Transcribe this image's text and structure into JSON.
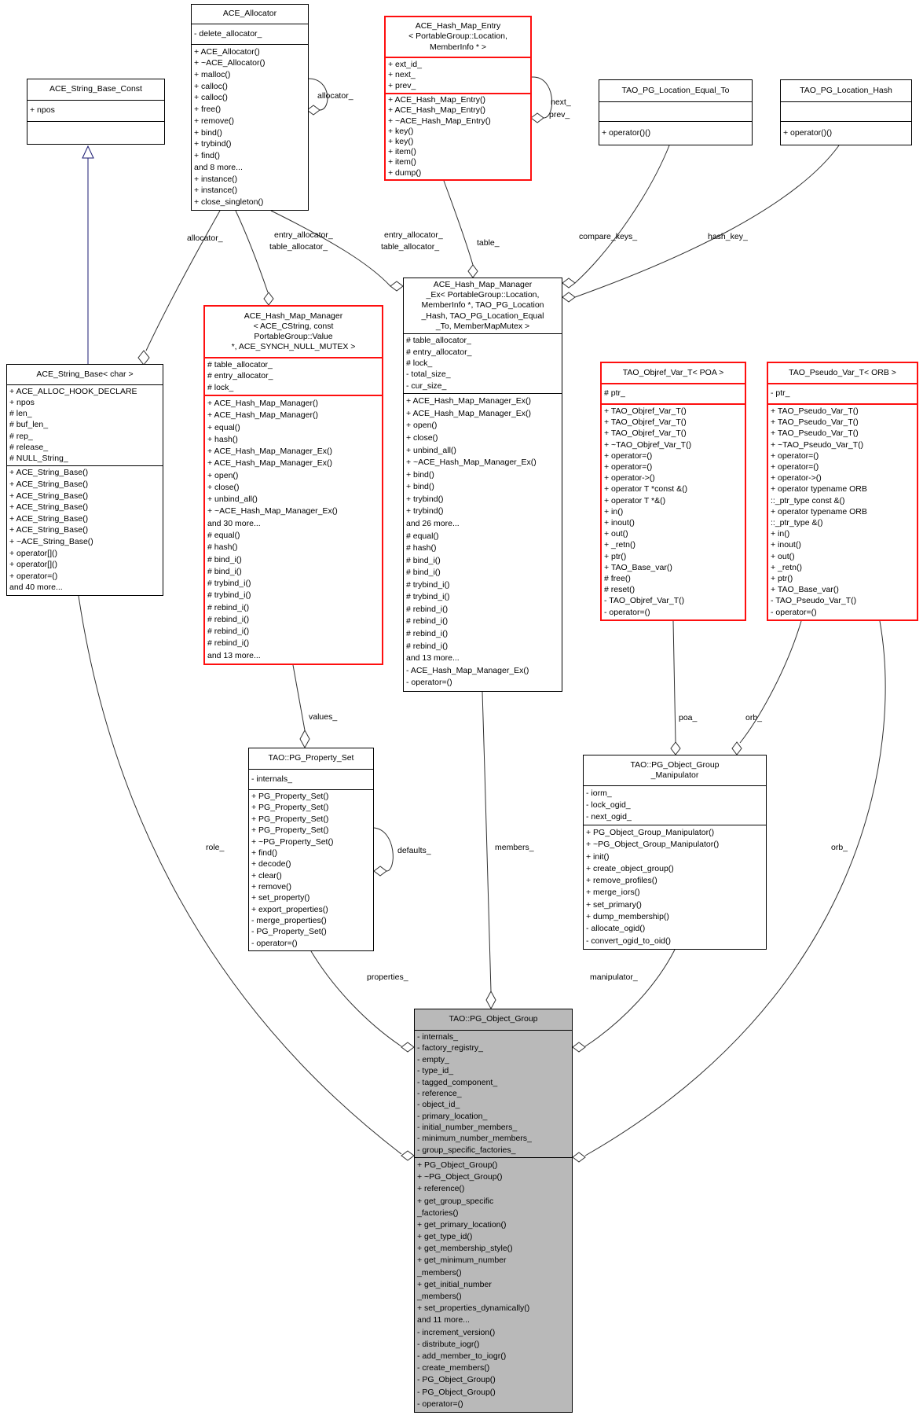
{
  "colors": {
    "plain_border": "#000000",
    "red_border": "#fe0f0f",
    "selected_fill": "#b9b9b9",
    "edge": "#303030",
    "inheritance_edge": "#191970",
    "background": "#ffffff"
  },
  "classes": [
    {
      "id": "ace_string_base_const",
      "style": "plain",
      "title_lines": [
        "ACE_String_Base_Const"
      ],
      "attributes": [
        "+ npos"
      ],
      "methods": []
    },
    {
      "id": "ace_allocator",
      "style": "plain",
      "title_lines": [
        "ACE_Allocator"
      ],
      "attributes": [
        "- delete_allocator_"
      ],
      "methods": [
        "+ ACE_Allocator()",
        "+ ~ACE_Allocator()",
        "+ malloc()",
        "+ calloc()",
        "+ calloc()",
        "+ free()",
        "+ remove()",
        "+ bind()",
        "+ trybind()",
        "+ find()",
        "and 8 more...",
        "+ instance()",
        "+ instance()",
        "+ close_singleton()"
      ]
    },
    {
      "id": "ace_hash_map_entry",
      "style": "red",
      "title_lines": [
        "ACE_Hash_Map_Entry",
        "< PortableGroup::Location,",
        "MemberInfo * >"
      ],
      "attributes": [
        "+ ext_id_",
        "+ next_",
        "+ prev_"
      ],
      "methods": [
        "+ ACE_Hash_Map_Entry()",
        "+ ACE_Hash_Map_Entry()",
        "+ ~ACE_Hash_Map_Entry()",
        "+ key()",
        "+ key()",
        "+ item()",
        "+ item()",
        "+ dump()"
      ]
    },
    {
      "id": "tao_pg_location_equal_to",
      "style": "plain",
      "title_lines": [
        "TAO_PG_Location_Equal_To"
      ],
      "attributes": [],
      "methods": [
        "+ operator()()"
      ]
    },
    {
      "id": "tao_pg_location_hash",
      "style": "plain",
      "title_lines": [
        "TAO_PG_Location_Hash"
      ],
      "attributes": [],
      "methods": [
        "+ operator()()"
      ]
    },
    {
      "id": "ace_string_base_char",
      "style": "plain",
      "title_lines": [
        "ACE_String_Base< char >"
      ],
      "attributes": [
        "+ ACE_ALLOC_HOOK_DECLARE",
        "+ npos",
        "# len_",
        "# buf_len_",
        "# rep_",
        "# release_",
        "# NULL_String_"
      ],
      "methods": [
        "+ ACE_String_Base()",
        "+ ACE_String_Base()",
        "+ ACE_String_Base()",
        "+ ACE_String_Base()",
        "+ ACE_String_Base()",
        "+ ACE_String_Base()",
        "+ ~ACE_String_Base()",
        "+ operator[]()",
        "+ operator[]()",
        "+ operator=()",
        "and 40 more..."
      ]
    },
    {
      "id": "ace_hash_map_manager",
      "style": "red",
      "title_lines": [
        "ACE_Hash_Map_Manager",
        "< ACE_CString, const",
        "PortableGroup::Value",
        "*, ACE_SYNCH_NULL_MUTEX >"
      ],
      "attributes": [
        "# table_allocator_",
        "# entry_allocator_",
        "# lock_"
      ],
      "methods": [
        "+ ACE_Hash_Map_Manager()",
        "+ ACE_Hash_Map_Manager()",
        "+ equal()",
        "+ hash()",
        "+ ACE_Hash_Map_Manager_Ex()",
        "+ ACE_Hash_Map_Manager_Ex()",
        "+ open()",
        "+ close()",
        "+ unbind_all()",
        "+ ~ACE_Hash_Map_Manager_Ex()",
        "and 30 more...",
        "# equal()",
        "# hash()",
        "# bind_i()",
        "# bind_i()",
        "# trybind_i()",
        "# trybind_i()",
        "# rebind_i()",
        "# rebind_i()",
        "# rebind_i()",
        "# rebind_i()",
        "and 13 more..."
      ]
    },
    {
      "id": "ace_hash_map_manager_ex",
      "style": "plain",
      "title_lines": [
        "ACE_Hash_Map_Manager",
        "_Ex< PortableGroup::Location,",
        "MemberInfo *, TAO_PG_Location",
        "_Hash, TAO_PG_Location_Equal",
        "_To, MemberMapMutex >"
      ],
      "attributes": [
        "# table_allocator_",
        "# entry_allocator_",
        "# lock_",
        "- total_size_",
        "- cur_size_"
      ],
      "methods": [
        "+ ACE_Hash_Map_Manager_Ex()",
        "+ ACE_Hash_Map_Manager_Ex()",
        "+ open()",
        "+ close()",
        "+ unbind_all()",
        "+ ~ACE_Hash_Map_Manager_Ex()",
        "+ bind()",
        "+ bind()",
        "+ trybind()",
        "+ trybind()",
        "and 26 more...",
        "# equal()",
        "# hash()",
        "# bind_i()",
        "# bind_i()",
        "# trybind_i()",
        "# trybind_i()",
        "# rebind_i()",
        "# rebind_i()",
        "# rebind_i()",
        "# rebind_i()",
        "and 13 more...",
        "- ACE_Hash_Map_Manager_Ex()",
        "- operator=()"
      ]
    },
    {
      "id": "tao_objref_var_t_poa",
      "style": "red",
      "title_lines": [
        "TAO_Objref_Var_T< POA >"
      ],
      "attributes": [
        "# ptr_"
      ],
      "methods": [
        "+ TAO_Objref_Var_T()",
        "+ TAO_Objref_Var_T()",
        "+ TAO_Objref_Var_T()",
        "+ ~TAO_Objref_Var_T()",
        "+ operator=()",
        "+ operator=()",
        "+ operator->()",
        "+ operator T *const &()",
        "+ operator T *&()",
        "+ in()",
        "+ inout()",
        "+ out()",
        "+ _retn()",
        "+ ptr()",
        "+ TAO_Base_var()",
        "# free()",
        "# reset()",
        "- TAO_Objref_Var_T()",
        "- operator=()"
      ]
    },
    {
      "id": "tao_pseudo_var_t_orb",
      "style": "red",
      "title_lines": [
        "TAO_Pseudo_Var_T< ORB >"
      ],
      "attributes": [
        "- ptr_"
      ],
      "methods": [
        "+ TAO_Pseudo_Var_T()",
        "+ TAO_Pseudo_Var_T()",
        "+ TAO_Pseudo_Var_T()",
        "+ ~TAO_Pseudo_Var_T()",
        "+ operator=()",
        "+ operator=()",
        "+ operator->()",
        "+ operator typename ORB",
        "::_ptr_type const &()",
        "+ operator typename ORB",
        "::_ptr_type &()",
        "+ in()",
        "+ inout()",
        "+ out()",
        "+ _retn()",
        "+ ptr()",
        "+ TAO_Base_var()",
        "- TAO_Pseudo_Var_T()",
        "- operator=()"
      ]
    },
    {
      "id": "tao_pg_property_set",
      "style": "plain",
      "title_lines": [
        "TAO::PG_Property_Set"
      ],
      "attributes": [
        "- internals_"
      ],
      "methods": [
        "+ PG_Property_Set()",
        "+ PG_Property_Set()",
        "+ PG_Property_Set()",
        "+ PG_Property_Set()",
        "+ ~PG_Property_Set()",
        "+ find()",
        "+ decode()",
        "+ clear()",
        "+ remove()",
        "+ set_property()",
        "+ export_properties()",
        "- merge_properties()",
        "- PG_Property_Set()",
        "- operator=()"
      ]
    },
    {
      "id": "tao_pg_object_group_manipulator",
      "style": "plain",
      "title_lines": [
        "TAO::PG_Object_Group",
        "_Manipulator"
      ],
      "attributes": [
        "- iorm_",
        "- lock_ogid_",
        "- next_ogid_"
      ],
      "methods": [
        "+ PG_Object_Group_Manipulator()",
        "+ ~PG_Object_Group_Manipulator()",
        "+ init()",
        "+ create_object_group()",
        "+ remove_profiles()",
        "+ merge_iors()",
        "+ set_primary()",
        "+ dump_membership()",
        "- allocate_ogid()",
        "- convert_ogid_to_oid()"
      ]
    },
    {
      "id": "tao_pg_object_group",
      "style": "selected",
      "title_lines": [
        "TAO::PG_Object_Group"
      ],
      "attributes": [
        "- internals_",
        "- factory_registry_",
        "- empty_",
        "- type_id_",
        "- tagged_component_",
        "- reference_",
        "- object_id_",
        "- primary_location_",
        "- initial_number_members_",
        "- minimum_number_members_",
        "- group_specific_factories_"
      ],
      "methods": [
        "+ PG_Object_Group()",
        "+ ~PG_Object_Group()",
        "+ reference()",
        "+ get_group_specific",
        "_factories()",
        "+ get_primary_location()",
        "+ get_type_id()",
        "+ get_membership_style()",
        "+ get_minimum_number",
        "_members()",
        "+ get_initial_number",
        "_members()",
        "+ set_properties_dynamically()",
        "and 11 more...",
        "- increment_version()",
        "- distribute_iogr()",
        "- add_member_to_iogr()",
        "- create_members()",
        "- PG_Object_Group()",
        "- PG_Object_Group()",
        "- operator=()"
      ]
    }
  ],
  "edge_labels": [
    {
      "id": "lbl_allocator_self",
      "text": "allocator_"
    },
    {
      "id": "lbl_allocator",
      "text": "allocator_"
    },
    {
      "id": "lbl_entry_alloc_left",
      "text": "entry_allocator_"
    },
    {
      "id": "lbl_table_alloc_left",
      "text": "table_allocator_"
    },
    {
      "id": "lbl_entry_alloc_right",
      "text": "entry_allocator_"
    },
    {
      "id": "lbl_table_alloc_right",
      "text": "table_allocator_"
    },
    {
      "id": "lbl_table",
      "text": "table_"
    },
    {
      "id": "lbl_next",
      "text": "next_"
    },
    {
      "id": "lbl_prev",
      "text": "prev_"
    },
    {
      "id": "lbl_compare_keys",
      "text": "compare_keys_"
    },
    {
      "id": "lbl_hash_key",
      "text": "hash_key_"
    },
    {
      "id": "lbl_values",
      "text": "values_"
    },
    {
      "id": "lbl_defaults",
      "text": "defaults_"
    },
    {
      "id": "lbl_role",
      "text": "role_"
    },
    {
      "id": "lbl_members",
      "text": "members_"
    },
    {
      "id": "lbl_poa",
      "text": "poa_"
    },
    {
      "id": "lbl_orb_manip",
      "text": "orb_"
    },
    {
      "id": "lbl_orb_group",
      "text": "orb_"
    },
    {
      "id": "lbl_properties",
      "text": "properties_"
    },
    {
      "id": "lbl_manipulator",
      "text": "manipulator_"
    }
  ]
}
